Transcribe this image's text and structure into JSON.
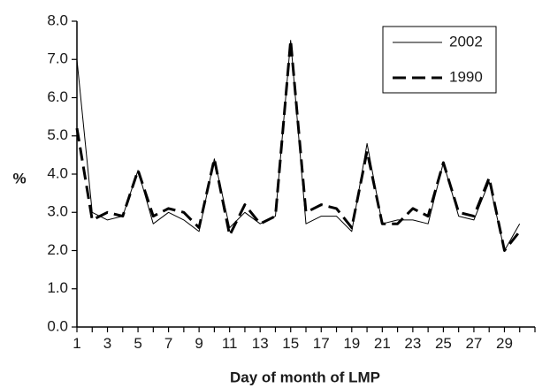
{
  "chart_data": {
    "type": "line",
    "title": "",
    "xlabel": "Day of month of LMP",
    "ylabel": "%",
    "xlim": [
      1,
      31
    ],
    "ylim": [
      0,
      8
    ],
    "y_ticks": [
      "0.0",
      "1.0",
      "2.0",
      "3.0",
      "4.0",
      "5.0",
      "6.0",
      "7.0",
      "8.0"
    ],
    "x_tick_labels": [
      "1",
      "3",
      "5",
      "7",
      "9",
      "11",
      "13",
      "15",
      "17",
      "19",
      "21",
      "23",
      "25",
      "27",
      "29"
    ],
    "x": [
      1,
      2,
      3,
      4,
      5,
      6,
      7,
      8,
      9,
      10,
      11,
      12,
      13,
      14,
      15,
      16,
      17,
      18,
      19,
      20,
      21,
      22,
      23,
      24,
      25,
      26,
      27,
      28,
      29,
      30
    ],
    "grid": false,
    "legend_position": "top-right",
    "series": [
      {
        "name": "2002",
        "style": "solid-thin",
        "color": "#000000",
        "values": [
          7.0,
          3.0,
          2.8,
          2.9,
          4.1,
          2.7,
          3.0,
          2.8,
          2.5,
          4.4,
          2.6,
          3.0,
          2.7,
          2.9,
          7.5,
          2.7,
          2.9,
          2.9,
          2.5,
          4.8,
          2.7,
          2.8,
          2.8,
          2.7,
          4.3,
          2.9,
          2.8,
          3.8,
          2.0,
          2.7
        ]
      },
      {
        "name": "1990",
        "style": "dashed-thick",
        "color": "#000000",
        "values": [
          5.2,
          2.8,
          3.0,
          2.9,
          4.1,
          2.9,
          3.1,
          3.0,
          2.6,
          4.4,
          2.4,
          3.2,
          2.7,
          2.9,
          7.5,
          3.0,
          3.2,
          3.1,
          2.6,
          4.6,
          2.7,
          2.7,
          3.1,
          2.9,
          4.3,
          3.0,
          2.9,
          3.9,
          2.0,
          2.5
        ]
      }
    ]
  }
}
